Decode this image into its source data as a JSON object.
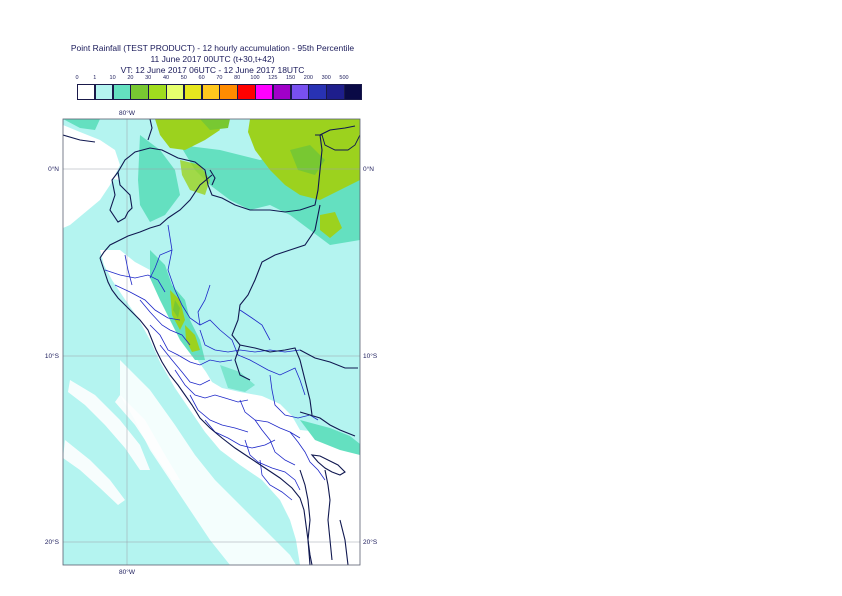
{
  "title": {
    "line1": "Point Rainfall (TEST PRODUCT) - 12 hourly accumulation - 95th Percentile",
    "line2": "11 June 2017 00UTC (t+30,t+42)",
    "line3": "VT: 12 June 2017 06UTC - 12 June 2017 18UTC"
  },
  "legend": {
    "ticks": [
      "0",
      "1",
      "10",
      "20",
      "30",
      "40",
      "50",
      "60",
      "70",
      "80",
      "100",
      "125",
      "150",
      "200",
      "300",
      "500"
    ],
    "colors": [
      "#ffffff",
      "#b4f4f0",
      "#64e0c0",
      "#78c832",
      "#a0dc1e",
      "#e6ff6e",
      "#e6e61e",
      "#ffc81e",
      "#ff8c00",
      "#ff0000",
      "#ff00ff",
      "#a000c8",
      "#7850f0",
      "#2832b4",
      "#1e1e8c",
      "#0a0a46"
    ]
  },
  "map": {
    "lon_labels": {
      "top": "80°W",
      "bottom": "80°W"
    },
    "lat_labels": {
      "lat0_left": "0°N",
      "lat0_right": "0°N",
      "lat10_left": "10°S",
      "lat10_right": "10°S",
      "lat20_left": "20°S",
      "lat20_right": "20°S"
    }
  }
}
